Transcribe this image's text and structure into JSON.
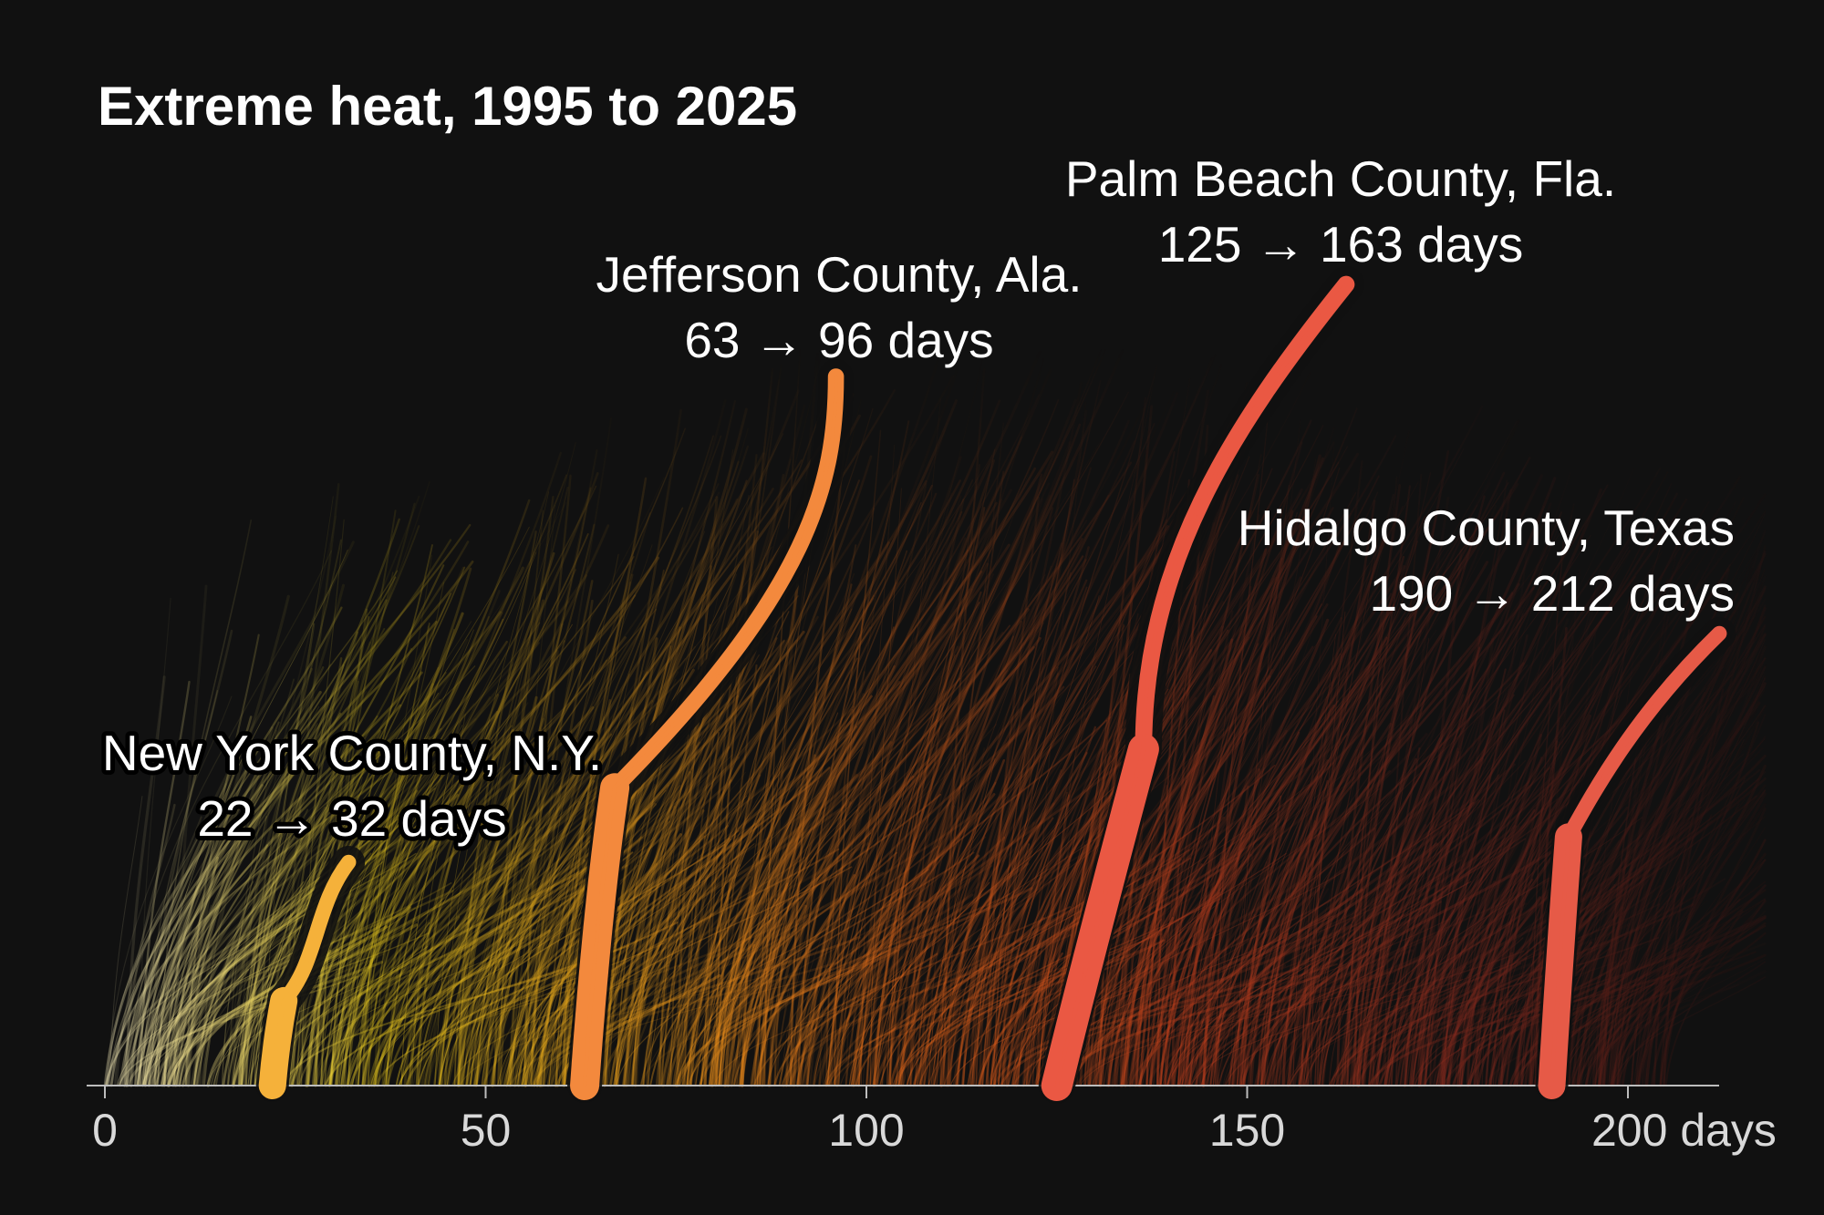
{
  "chart_data": {
    "type": "line",
    "title": "Extreme heat, 1995 to 2025",
    "xlabel": "",
    "ylabel": "",
    "xlim": [
      0,
      212
    ],
    "x_ticks": [
      {
        "value": 0,
        "label": "0"
      },
      {
        "value": 50,
        "label": "50"
      },
      {
        "value": 100,
        "label": "100"
      },
      {
        "value": 150,
        "label": "150"
      },
      {
        "value": 200,
        "label": "200 days"
      }
    ],
    "grid": false,
    "legend": "none",
    "x_unit": "days",
    "series": [
      {
        "name": "New York County, N.Y.",
        "from": 22,
        "to": 32,
        "change_label": "22 → 32 days",
        "color": "#f5b13a"
      },
      {
        "name": "Jefferson County, Ala.",
        "from": 63,
        "to": 96,
        "change_label": "63 → 96 days",
        "color": "#f3893d"
      },
      {
        "name": "Palm Beach County, Fla.",
        "from": 125,
        "to": 163,
        "change_label": "125 → 163 days",
        "color": "#ea5843"
      },
      {
        "name": "Hidalgo County, Texas",
        "from": 190,
        "to": 212,
        "change_label": "190 → 212 days",
        "color": "#e65a47"
      }
    ],
    "gradient_colors": [
      "#fff4c2",
      "#f7d51d",
      "#f8a319",
      "#f26a18",
      "#c8401c",
      "#8a2a1d",
      "#3b1512"
    ]
  }
}
